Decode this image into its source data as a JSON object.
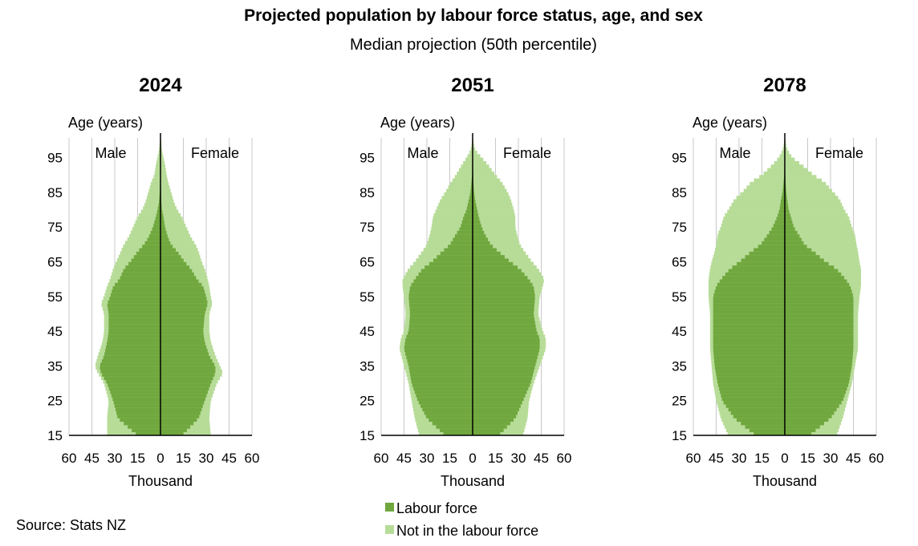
{
  "title": "Projected population by labour force status, age, and sex",
  "subtitle": "Median projection (50th percentile)",
  "source": "Source: Stats NZ",
  "colors": {
    "labour_force": "#70a73e",
    "not_in_labour_force": "#b7dc98",
    "grid": "#c8c8c8",
    "axis": "#000000"
  },
  "chart_data": [
    {
      "type": "population-pyramid",
      "title": "2024",
      "ylabel": "Age (years)",
      "xlabel": "Thousand",
      "male_label": "Male",
      "female_label": "Female",
      "x_ticks": [
        "60",
        "45",
        "30",
        "15",
        "0",
        "15",
        "30",
        "45",
        "60"
      ],
      "y_ticks": [
        "15",
        "25",
        "35",
        "45",
        "55",
        "65",
        "75",
        "85",
        "95"
      ],
      "xlim": [
        -60,
        60
      ],
      "ylim": [
        15,
        100
      ],
      "series_names": [
        "Labour force",
        "Not in the labour force"
      ],
      "profile": {
        "ages": [
          15,
          20,
          25,
          30,
          33,
          35,
          38,
          42,
          45,
          50,
          53,
          55,
          58,
          60,
          63,
          65,
          68,
          70,
          72,
          75,
          78,
          80,
          82,
          85,
          88,
          90,
          93,
          95,
          97,
          99
        ],
        "male_total": [
          35,
          35,
          34,
          37,
          41,
          43,
          41,
          38,
          37,
          37,
          39,
          37,
          35,
          33,
          31,
          29,
          26,
          24,
          21,
          18,
          15,
          12,
          10,
          8,
          6,
          4,
          3,
          2,
          1,
          0.5
        ],
        "male_lf": [
          15,
          28,
          31,
          35,
          39,
          40,
          37,
          35,
          34,
          34,
          35,
          33,
          31,
          27,
          24,
          20,
          15,
          11,
          8,
          5,
          3,
          2,
          1,
          0.5,
          0.3,
          0.2,
          0.1,
          0,
          0,
          0
        ],
        "female_total": [
          33,
          32,
          33,
          37,
          41,
          39,
          36,
          33,
          32,
          32,
          34,
          33,
          32,
          31,
          29,
          27,
          25,
          23,
          20,
          17,
          14,
          11,
          9,
          7,
          5,
          4,
          3,
          2,
          1,
          0.5
        ],
        "female_lf": [
          14,
          25,
          29,
          33,
          36,
          36,
          32,
          29,
          28,
          29,
          31,
          30,
          28,
          24,
          20,
          16,
          11,
          7,
          5,
          3,
          2,
          1,
          0.6,
          0.3,
          0.2,
          0.1,
          0,
          0,
          0,
          0
        ]
      }
    },
    {
      "type": "population-pyramid",
      "title": "2051",
      "ylabel": "Age (years)",
      "xlabel": "Thousand",
      "male_label": "Male",
      "female_label": "Female",
      "x_ticks": [
        "60",
        "45",
        "30",
        "15",
        "0",
        "15",
        "30",
        "45",
        "60"
      ],
      "y_ticks": [
        "15",
        "25",
        "35",
        "45",
        "55",
        "65",
        "75",
        "85",
        "95"
      ],
      "xlim": [
        -60,
        60
      ],
      "ylim": [
        15,
        100
      ],
      "series_names": [
        "Labour force",
        "Not in the labour force"
      ],
      "profile": {
        "ages": [
          15,
          20,
          25,
          30,
          35,
          40,
          43,
          45,
          50,
          55,
          58,
          60,
          63,
          65,
          68,
          70,
          73,
          75,
          78,
          80,
          83,
          85,
          88,
          90,
          93,
          95,
          97,
          99
        ],
        "male_total": [
          35,
          38,
          40,
          42,
          45,
          48,
          47,
          45,
          44,
          45,
          46,
          46,
          42,
          38,
          33,
          30,
          28,
          27,
          26,
          24,
          21,
          18,
          14,
          11,
          7,
          4,
          1.5,
          0.5
        ],
        "male_lf": [
          18,
          30,
          36,
          40,
          42,
          45,
          44,
          42,
          41,
          42,
          41,
          38,
          33,
          27,
          20,
          15,
          11,
          8,
          6,
          4,
          2.5,
          1.5,
          0.8,
          0.4,
          0.2,
          0.1,
          0,
          0
        ],
        "female_total": [
          33,
          36,
          37,
          40,
          44,
          48,
          48,
          46,
          43,
          44,
          46,
          47,
          43,
          39,
          34,
          31,
          29,
          28,
          28,
          27,
          25,
          23,
          19,
          15,
          10,
          6,
          2,
          0.5
        ],
        "female_lf": [
          17,
          28,
          33,
          38,
          41,
          44,
          44,
          42,
          40,
          41,
          40,
          37,
          31,
          25,
          17,
          12,
          8,
          6,
          4,
          3,
          1.6,
          1,
          0.5,
          0.3,
          0.1,
          0,
          0,
          0
        ]
      }
    },
    {
      "type": "population-pyramid",
      "title": "2078",
      "ylabel": "Age (years)",
      "xlabel": "Thousand",
      "male_label": "Male",
      "female_label": "Female",
      "x_ticks": [
        "60",
        "45",
        "30",
        "15",
        "0",
        "15",
        "30",
        "45",
        "60"
      ],
      "y_ticks": [
        "15",
        "25",
        "35",
        "45",
        "55",
        "65",
        "75",
        "85",
        "95"
      ],
      "xlim": [
        -60,
        60
      ],
      "ylim": [
        15,
        100
      ],
      "series_names": [
        "Labour force",
        "Not in the labour force"
      ],
      "profile": {
        "ages": [
          15,
          20,
          25,
          30,
          35,
          40,
          45,
          50,
          55,
          58,
          60,
          63,
          65,
          68,
          70,
          73,
          75,
          78,
          80,
          83,
          85,
          88,
          90,
          93,
          95,
          97,
          99
        ],
        "male_total": [
          37,
          42,
          45,
          47,
          48,
          49,
          49,
          49,
          50,
          50,
          50,
          49,
          48,
          46,
          45,
          44,
          42,
          40,
          37,
          33,
          28,
          22,
          15,
          8,
          4,
          1.5,
          0.5
        ],
        "male_lf": [
          19,
          33,
          41,
          44,
          46,
          47,
          47,
          47,
          47,
          45,
          42,
          36,
          30,
          22,
          16,
          11,
          8,
          5,
          3.5,
          2.5,
          1.5,
          0.8,
          0.4,
          0.2,
          0.1,
          0,
          0
        ],
        "female_total": [
          34,
          38,
          41,
          44,
          46,
          48,
          48,
          48,
          49,
          50,
          50,
          50,
          49,
          48,
          47,
          46,
          44,
          42,
          39,
          36,
          32,
          26,
          19,
          11,
          5,
          2,
          0.5
        ],
        "female_lf": [
          16,
          30,
          38,
          42,
          44,
          45,
          45,
          45,
          45,
          43,
          40,
          34,
          27,
          19,
          13,
          9,
          6,
          4,
          2.5,
          1.6,
          1,
          0.5,
          0.3,
          0.1,
          0,
          0,
          0
        ]
      }
    }
  ]
}
